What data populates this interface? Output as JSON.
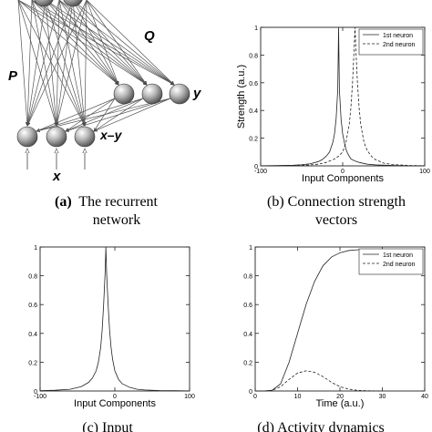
{
  "panels": {
    "a": {
      "caption_letter": "(a)",
      "caption_line1": "The recurrent",
      "caption_line2": "network",
      "labels": {
        "Q": "Q",
        "P": "P",
        "y": "y",
        "x_minus_y": "x–y",
        "x": "x"
      }
    },
    "b": {
      "caption_line1": "(b) Connection strength",
      "caption_line2": "vectors"
    },
    "c": {
      "caption": "(c) Input"
    },
    "d": {
      "caption": "(d) Activity dynamics"
    }
  },
  "chart_data": [
    {
      "id": "b",
      "type": "line",
      "xlabel": "Input Components",
      "ylabel": "Strength (a.u.)",
      "xlim": [
        -100,
        100
      ],
      "ylim": [
        0,
        1
      ],
      "xticks": [
        "-100",
        "0",
        "100"
      ],
      "yticks": [
        "0",
        "0.2",
        "0.4",
        "0.6",
        "0.8",
        "1"
      ],
      "legend": "top-right",
      "series": [
        {
          "name": "1st neuron",
          "style": "solid",
          "x": [
            -100,
            -80,
            -60,
            -50,
            -40,
            -30,
            -25,
            -20,
            -16,
            -12,
            -10,
            -8,
            -6,
            -5,
            -4,
            -2,
            0,
            2,
            4,
            6,
            8,
            10,
            15,
            20,
            30,
            40,
            60,
            80,
            100
          ],
          "y": [
            0.001,
            0.002,
            0.005,
            0.008,
            0.015,
            0.03,
            0.045,
            0.07,
            0.1,
            0.17,
            0.23,
            0.34,
            0.55,
            1.0,
            0.55,
            0.34,
            0.23,
            0.17,
            0.12,
            0.09,
            0.07,
            0.05,
            0.035,
            0.025,
            0.012,
            0.007,
            0.003,
            0.001,
            0.001
          ]
        },
        {
          "name": "2nd neuron",
          "style": "dashed",
          "x": [
            -100,
            -80,
            -60,
            -40,
            -30,
            -20,
            -10,
            -5,
            0,
            4,
            8,
            10,
            12,
            14,
            15,
            16,
            18,
            20,
            22,
            26,
            30,
            35,
            40,
            50,
            60,
            80,
            100
          ],
          "y": [
            0.001,
            0.001,
            0.003,
            0.007,
            0.012,
            0.025,
            0.05,
            0.07,
            0.1,
            0.17,
            0.3,
            0.42,
            0.6,
            0.85,
            1.0,
            0.85,
            0.6,
            0.42,
            0.3,
            0.17,
            0.11,
            0.07,
            0.045,
            0.02,
            0.01,
            0.003,
            0.001
          ]
        }
      ]
    },
    {
      "id": "c",
      "type": "line",
      "xlabel": "Input Components",
      "ylabel": "",
      "xlim": [
        -100,
        100
      ],
      "ylim": [
        0,
        1
      ],
      "xticks": [
        "-100",
        "0",
        "100"
      ],
      "yticks": [
        "0",
        "0.2",
        "0.4",
        "0.6",
        "0.8",
        "1"
      ],
      "series": [
        {
          "style": "solid",
          "x": [
            -100,
            -80,
            -60,
            -45,
            -35,
            -30,
            -25,
            -22,
            -19,
            -17,
            -15,
            -13,
            -12,
            -11,
            -9,
            -7,
            -5,
            -3,
            0,
            5,
            10,
            20,
            30,
            40,
            60,
            80,
            100
          ],
          "y": [
            0.002,
            0.005,
            0.012,
            0.03,
            0.06,
            0.09,
            0.14,
            0.2,
            0.3,
            0.42,
            0.6,
            0.82,
            1.0,
            0.82,
            0.6,
            0.42,
            0.3,
            0.22,
            0.14,
            0.08,
            0.05,
            0.025,
            0.012,
            0.007,
            0.003,
            0.002,
            0.001
          ]
        }
      ]
    },
    {
      "id": "d",
      "type": "line",
      "xlabel": "Time (a.u.)",
      "ylabel": "",
      "xlim": [
        0,
        40
      ],
      "ylim": [
        0,
        1
      ],
      "xticks": [
        "0",
        "10",
        "20",
        "30",
        "40"
      ],
      "yticks": [
        "0",
        "0.2",
        "0.4",
        "0.6",
        "0.8",
        "1"
      ],
      "legend": "top-right",
      "series": [
        {
          "name": "1st neuron",
          "style": "solid",
          "x": [
            0,
            2,
            4,
            6,
            8,
            10,
            12,
            14,
            16,
            18,
            20,
            22,
            24,
            26,
            28,
            30
          ],
          "y": [
            0,
            0,
            0.005,
            0.05,
            0.2,
            0.4,
            0.6,
            0.76,
            0.87,
            0.93,
            0.96,
            0.975,
            0.98,
            0.985,
            0.985,
            0.985
          ]
        },
        {
          "name": "2nd neuron",
          "style": "dashed",
          "x": [
            0,
            2,
            4,
            6,
            8,
            10,
            12,
            14,
            16,
            18,
            20,
            22,
            24,
            26,
            28,
            30
          ],
          "y": [
            0,
            0,
            0.004,
            0.03,
            0.08,
            0.125,
            0.14,
            0.13,
            0.1,
            0.06,
            0.03,
            0.013,
            0.005,
            0.002,
            0.001,
            0
          ]
        }
      ]
    }
  ]
}
